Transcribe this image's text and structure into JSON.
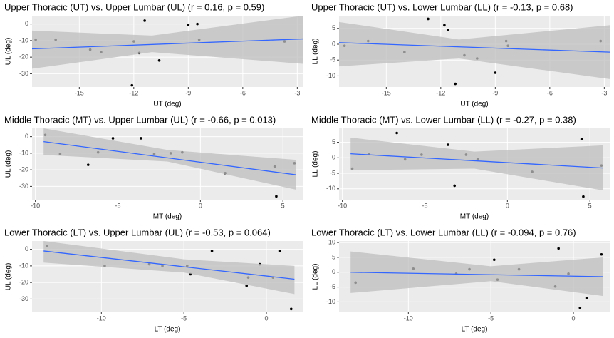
{
  "chart_data": [
    {
      "type": "scatter",
      "title": "Upper Thoracic (UT) vs. Upper Lumbar (UL) (r = 0.16, p = 0.59)",
      "x_label": "UT (deg)",
      "y_label": "UL (deg)",
      "xlim": [
        -17.6,
        -2.7
      ],
      "xticks": [
        -15,
        -12,
        -9,
        -6,
        -3
      ],
      "ylim": [
        -38,
        5
      ],
      "yticks": [
        0,
        -10,
        -20,
        -30
      ],
      "color": "#000000",
      "x": [
        -17.4,
        -16.3,
        -14.4,
        -13.8,
        -12.0,
        -11.7,
        -11.4,
        -12.1,
        -10.6,
        -9,
        -8.5,
        -8.4,
        -3.7
      ],
      "y": [
        -9.5,
        -9.5,
        -15.5,
        -17,
        -10.5,
        -17.5,
        2,
        -37,
        -22,
        -0.5,
        0,
        -9.5,
        -10.5
      ],
      "fit": {
        "x": [
          -17.6,
          -2.7
        ],
        "y": [
          -15,
          -9
        ],
        "color": "#3366ff"
      },
      "band": {
        "x": [
          -17.6,
          -11,
          -2.7
        ],
        "lower": [
          -27,
          -17,
          -24
        ],
        "upper": [
          -4,
          -7,
          5
        ],
        "color": "#bebebe"
      }
    },
    {
      "type": "scatter",
      "title": "Upper Thoracic (UT) vs. Lower Lumbar (LL) (r = -0.13, p = 0.68)",
      "x_label": "UT (deg)",
      "y_label": "LL (deg)",
      "xlim": [
        -17.6,
        -2.7
      ],
      "xticks": [
        -15,
        -12,
        -9,
        -6,
        -3
      ],
      "ylim": [
        -13.5,
        9
      ],
      "yticks": [
        5,
        0,
        -5,
        -10
      ],
      "color": "#000000",
      "x": [
        -17.3,
        -16,
        -14,
        -12.7,
        -11.8,
        -11.6,
        -11.2,
        -10.7,
        -10,
        -9,
        -8.4,
        -8.3,
        -3.2
      ],
      "y": [
        -0.5,
        1,
        -2.5,
        8,
        6,
        4.5,
        -12.5,
        -3.5,
        -4.5,
        -9,
        1,
        -0.5,
        1
      ],
      "fit": {
        "x": [
          -17.6,
          -2.7
        ],
        "y": [
          0.5,
          -2.5
        ],
        "color": "#3366ff"
      },
      "band": {
        "x": [
          -17.6,
          -11,
          -2.7
        ],
        "lower": [
          -7,
          -4.5,
          -11
        ],
        "upper": [
          7,
          1.5,
          6
        ],
        "color": "#bebebe"
      }
    },
    {
      "type": "scatter",
      "title": "Middle Thoracic (MT) vs. Upper Lumbar (UL) (r = -0.66, p = 0.013)",
      "x_label": "MT (deg)",
      "y_label": "UL (deg)",
      "xlim": [
        -10.2,
        6.2
      ],
      "xticks": [
        -10,
        -5,
        0,
        5
      ],
      "ylim": [
        -38,
        5
      ],
      "yticks": [
        0,
        -10,
        -20,
        -30
      ],
      "color": "#000000",
      "x": [
        -9.4,
        -8.5,
        -6.8,
        -6.2,
        -5.3,
        -3.6,
        -2.8,
        -1.8,
        -1.1,
        1.5,
        4.5,
        4.6,
        5.7
      ],
      "y": [
        1,
        -10.5,
        -17,
        -9.5,
        -1,
        -1,
        -10.5,
        -10,
        -9.5,
        -22,
        -18,
        -36,
        -16
      ],
      "fit": {
        "x": [
          -9.5,
          5.8
        ],
        "y": [
          -3,
          -23
        ],
        "color": "#3366ff"
      },
      "band": {
        "x": [
          -9.5,
          -2,
          5.8
        ],
        "lower": [
          -11,
          -15,
          -32
        ],
        "upper": [
          5,
          -8,
          -14
        ],
        "color": "#bebebe"
      }
    },
    {
      "type": "scatter",
      "title": "Middle Thoracic (MT) vs. Lower Lumbar (LL) (r = -0.27, p = 0.38)",
      "x_label": "MT (deg)",
      "y_label": "LL (deg)",
      "xlim": [
        -10.2,
        6.2
      ],
      "xticks": [
        -10,
        -5,
        0,
        5
      ],
      "ylim": [
        -13.5,
        9.5
      ],
      "yticks": [
        5,
        0,
        -5,
        -10
      ],
      "color": "#000000",
      "x": [
        -9.4,
        -8.4,
        -6.7,
        -6.2,
        -5.2,
        -3.6,
        -3.2,
        -2.5,
        -1.8,
        1.5,
        4.5,
        4.6,
        5.7
      ],
      "y": [
        -3.5,
        1.2,
        8,
        -0.5,
        1,
        4.2,
        -9,
        1,
        -0.5,
        -4.5,
        6,
        -12.5,
        -2.5
      ],
      "fit": {
        "x": [
          -9.5,
          5.8
        ],
        "y": [
          1.3,
          -3.3
        ],
        "color": "#3366ff"
      },
      "band": {
        "x": [
          -9.5,
          -2,
          5.8
        ],
        "lower": [
          -4,
          -3.5,
          -10.5
        ],
        "upper": [
          6.5,
          2,
          4
        ],
        "color": "#bebebe"
      }
    },
    {
      "type": "scatter",
      "title": "Lower Thoracic (LT) vs. Upper Lumbar (UL) (r = -0.53, p = 0.064)",
      "x_label": "LT (deg)",
      "y_label": "UL (deg)",
      "xlim": [
        -14.2,
        2.2
      ],
      "xticks": [
        -10,
        -5,
        0
      ],
      "ylim": [
        -38,
        5
      ],
      "yticks": [
        0,
        -10,
        -20,
        -30
      ],
      "color": "#000000",
      "x": [
        -13.3,
        -9.8,
        -7.1,
        -6.3,
        -4.8,
        -4.6,
        -3.3,
        -1.2,
        -1.1,
        -0.4,
        0.4,
        0.8,
        1.5
      ],
      "y": [
        2,
        -10,
        -9,
        -10,
        -10,
        -15,
        -1,
        -22,
        -17,
        -9,
        -17,
        -1,
        -36
      ],
      "fit": {
        "x": [
          -13.5,
          1.7
        ],
        "y": [
          -1,
          -18
        ],
        "color": "#3366ff"
      },
      "band": {
        "x": [
          -13.5,
          -5,
          1.7
        ],
        "lower": [
          -8,
          -14,
          -27
        ],
        "upper": [
          5,
          -6,
          -10
        ],
        "color": "#bebebe"
      }
    },
    {
      "type": "scatter",
      "title": "Lower Thoracic (LT) vs. Lower Lumbar (LL) (r = -0.094, p = 0.76)",
      "x_label": "LT (deg)",
      "y_label": "LL (deg)",
      "xlim": [
        -14.2,
        2.2
      ],
      "xticks": [
        -10,
        -5,
        0
      ],
      "ylim": [
        -13.5,
        10.5
      ],
      "yticks": [
        10,
        5,
        0,
        -5,
        -10
      ],
      "color": "#000000",
      "x": [
        -13.2,
        -9.7,
        -7.1,
        -6.3,
        -4.8,
        -4.6,
        -3.3,
        -1.1,
        -0.9,
        -0.3,
        0.4,
        0.8,
        1.7
      ],
      "y": [
        -3.5,
        1.2,
        -0.5,
        1,
        4.2,
        -2.5,
        1,
        -4.8,
        8,
        -0.5,
        -12,
        -8.7,
        6
      ],
      "fit": {
        "x": [
          -13.5,
          1.8
        ],
        "y": [
          0,
          -1.5
        ],
        "color": "#3366ff"
      },
      "band": {
        "x": [
          -13.5,
          -5,
          1.8
        ],
        "lower": [
          -7,
          -3,
          -8
        ],
        "upper": [
          7,
          2,
          5
        ],
        "color": "#bebebe"
      }
    }
  ]
}
